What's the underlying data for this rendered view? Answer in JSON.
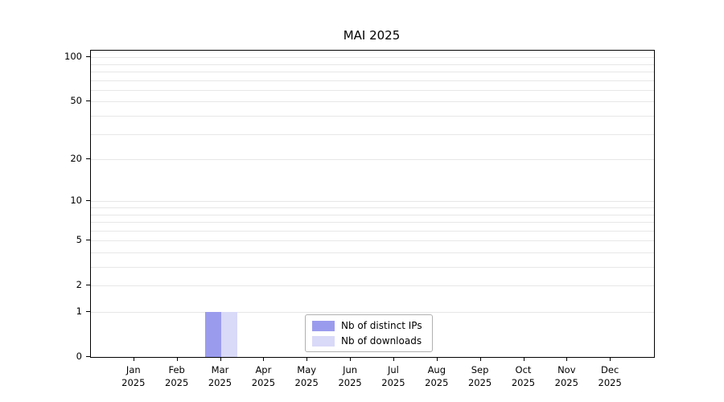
{
  "chart_data": {
    "type": "bar",
    "title": "MAI 2025",
    "categories": [
      "Jan 2025",
      "Feb 2025",
      "Mar 2025",
      "Apr 2025",
      "May 2025",
      "Jun 2025",
      "Jul 2025",
      "Aug 2025",
      "Sep 2025",
      "Oct 2025",
      "Nov 2025",
      "Dec 2025"
    ],
    "month_labels": [
      "Jan",
      "Feb",
      "Mar",
      "Apr",
      "May",
      "Jun",
      "Jul",
      "Aug",
      "Sep",
      "Oct",
      "Nov",
      "Dec"
    ],
    "year_label": "2025",
    "series": [
      {
        "name": "Nb of distinct IPs",
        "color": "#9b9bee",
        "values": [
          0,
          0,
          1,
          0,
          0,
          0,
          0,
          0,
          0,
          0,
          0,
          0
        ]
      },
      {
        "name": "Nb of downloads",
        "color": "#d9d9f8",
        "values": [
          0,
          0,
          1,
          0,
          0,
          0,
          0,
          0,
          0,
          0,
          0,
          0
        ]
      }
    ],
    "xlabel": "",
    "ylabel": "",
    "yscale": "log1p",
    "ylim": [
      0,
      112
    ],
    "y_tick_values": [
      0,
      1,
      2,
      5,
      10,
      20,
      50,
      100
    ],
    "minor_grid_values": [
      1,
      2,
      3,
      4,
      5,
      6,
      7,
      8,
      9,
      10,
      20,
      30,
      40,
      50,
      60,
      70,
      80,
      90,
      100
    ],
    "grid": true,
    "legend_position": "bottom-center",
    "legend_entries": [
      "Nb of distinct IPs",
      "Nb of downloads"
    ],
    "colors": {
      "distinct_ips": "#9b9bee",
      "downloads": "#d9d9f8",
      "grid": "#e7e7e7",
      "axis": "#000000"
    }
  }
}
